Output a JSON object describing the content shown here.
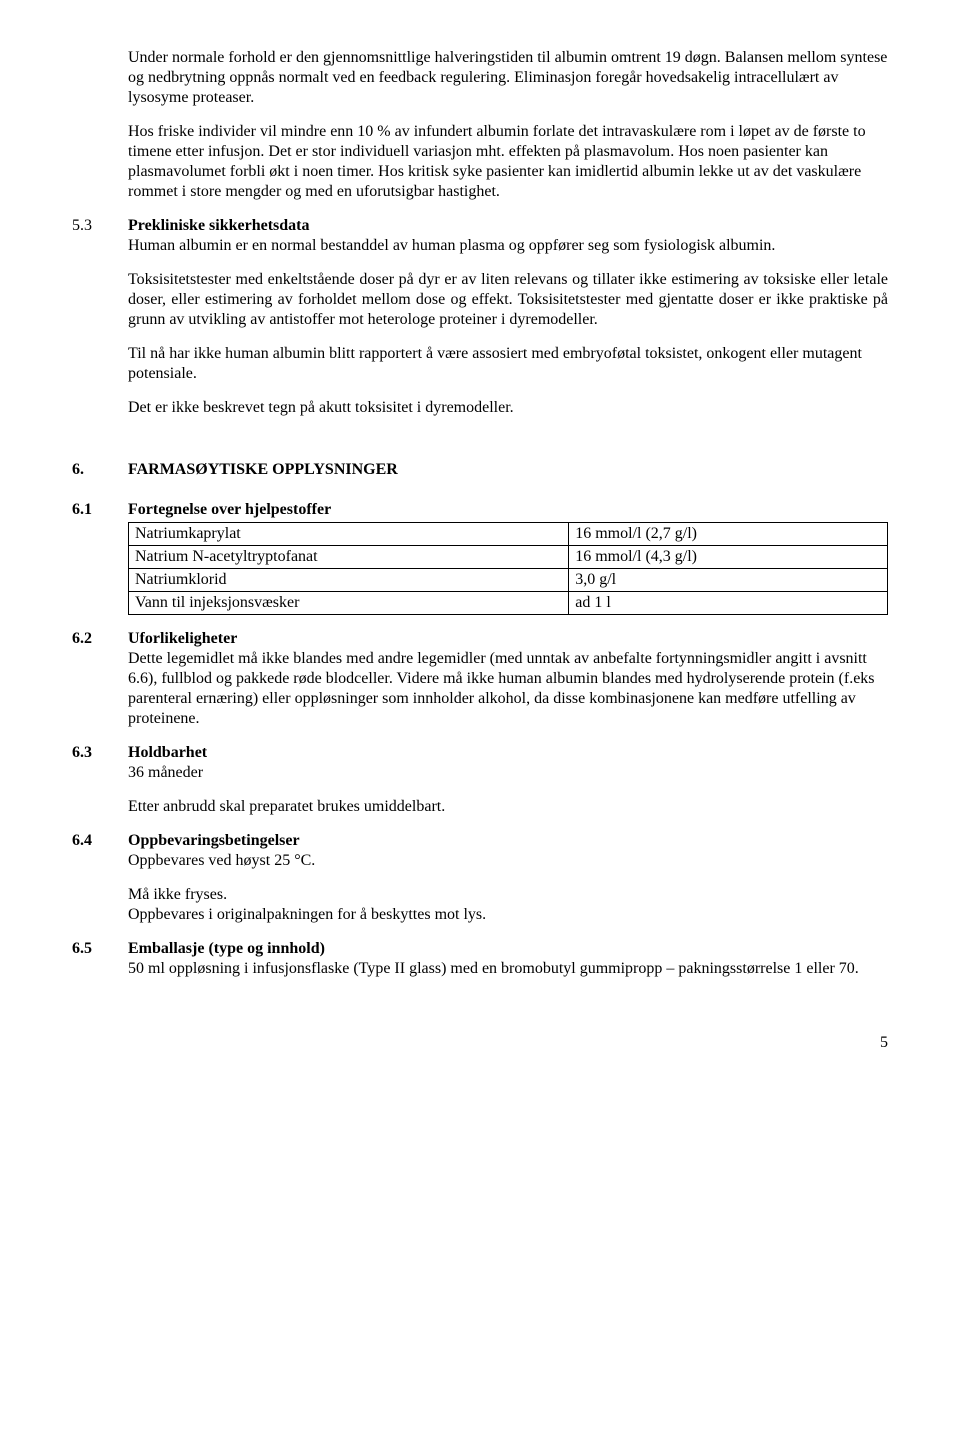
{
  "intro": {
    "p1": "Under normale forhold er den gjennomsnittlige halveringstiden til albumin omtrent 19 døgn. Balansen mellom syntese og nedbrytning oppnås normalt ved en feedback regulering. Eliminasjon foregår hovedsakelig intracellulært av lysosyme proteaser.",
    "p2": "Hos friske individer vil mindre enn 10 % av infundert albumin forlate det intravaskulære rom i løpet av de første to timene etter infusjon. Det er stor individuell variasjon mht. effekten på plasmavolum. Hos noen pasienter kan plasmavolumet forbli økt i noen timer. Hos kritisk syke pasienter kan imidlertid albumin lekke ut av det vaskulære rommet i store mengder og med en uforutsigbar hastighet."
  },
  "s53": {
    "num": "5.3",
    "title": "Prekliniske sikkerhetsdata",
    "p1": "Human albumin er en normal bestanddel av human plasma og oppfører seg som fysiologisk albumin.",
    "p2": "Toksisitetstester med enkeltstående doser på dyr er av liten relevans og tillater ikke estimering av toksiske eller letale doser, eller estimering av forholdet mellom dose og effekt. Toksisitetstester med gjentatte doser er ikke praktiske på grunn av utvikling av antistoffer mot heterologe proteiner i dyremodeller.",
    "p3": "Til nå har ikke human albumin blitt rapportert å være assosiert med embryoføtal toksistet, onkogent eller mutagent potensiale.",
    "p4": "Det er ikke beskrevet tegn på akutt toksisitet i dyremodeller."
  },
  "s6": {
    "num": "6.",
    "title": "FARMASØYTISKE OPPLYSNINGER"
  },
  "s61": {
    "num": "6.1",
    "title": "Fortegnelse over hjelpestoffer",
    "rows": [
      {
        "name": "Natriumkaprylat",
        "value": "16 mmol/l (2,7 g/l)"
      },
      {
        "name": "Natrium N-acetyltryptofanat",
        "value": "16 mmol/l (4,3 g/l)"
      },
      {
        "name": "Natriumklorid",
        "value": "3,0 g/l"
      },
      {
        "name": "Vann til injeksjonsvæsker",
        "value": "ad 1 l"
      }
    ]
  },
  "s62": {
    "num": "6.2",
    "title": "Uforlikeligheter",
    "p1": "Dette legemidlet må ikke blandes med andre legemidler (med unntak av anbefalte fortynningsmidler angitt i avsnitt 6.6), fullblod og pakkede røde blodceller. Videre må ikke human albumin blandes med hydrolyserende protein (f.eks parenteral ernæring) eller oppløsninger som innholder alkohol, da disse kombinasjonene kan medføre utfelling av proteinene."
  },
  "s63": {
    "num": "6.3",
    "title": "Holdbarhet",
    "p1": "36 måneder",
    "p2": "Etter anbrudd skal preparatet brukes umiddelbart."
  },
  "s64": {
    "num": "6.4",
    "title": "Oppbevaringsbetingelser",
    "p1": "Oppbevares ved høyst 25 °C.",
    "p2": "Må ikke fryses.",
    "p3": "Oppbevares i originalpakningen for å beskyttes mot lys."
  },
  "s65": {
    "num": "6.5",
    "title": "Emballasje (type og innhold)",
    "p1": "50 ml oppløsning i infusjonsflaske (Type II glass) med en bromobutyl gummipropp – pakningsstørrelse 1 eller 70."
  },
  "pageNumber": "5"
}
